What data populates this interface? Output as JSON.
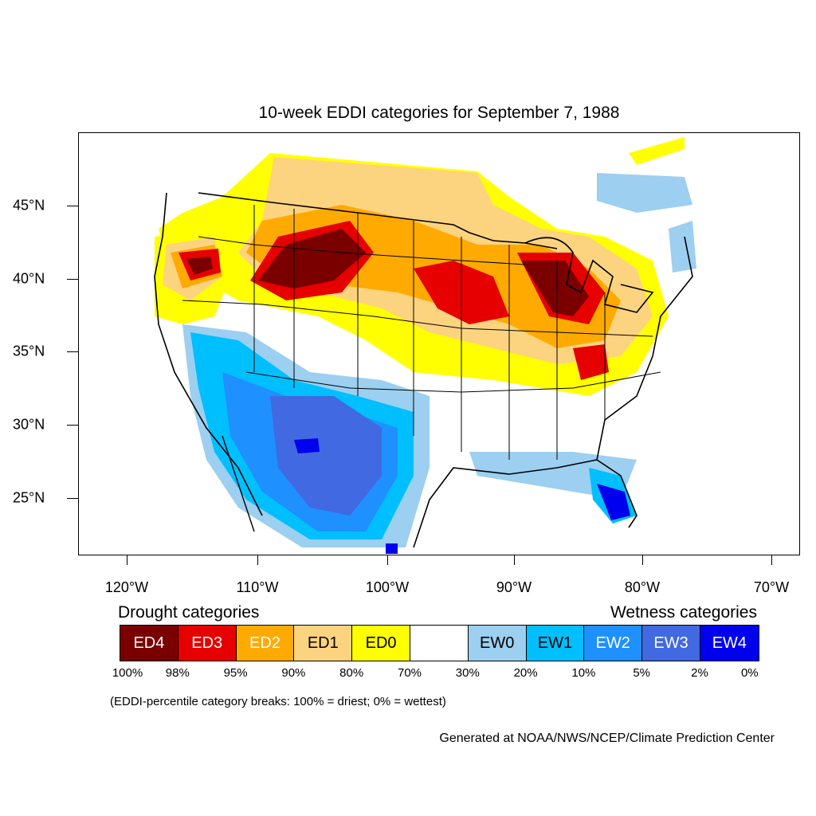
{
  "title": "10-week EDDI categories for September 7, 1988",
  "axes": {
    "lat_labels": [
      "45°N",
      "40°N",
      "35°N",
      "30°N",
      "25°N"
    ],
    "lon_labels": [
      "120°W",
      "110°W",
      "100°W",
      "90°W",
      "80°W",
      "70°W"
    ]
  },
  "legend": {
    "drought_heading": "Drought categories",
    "wetness_heading": "Wetness categories",
    "categories": [
      {
        "label": "ED4",
        "color": "#7a0000",
        "text_color": "#ffffff"
      },
      {
        "label": "ED3",
        "color": "#e60000",
        "text_color": "#ffffff"
      },
      {
        "label": "ED2",
        "color": "#ffaa00",
        "text_color": "#ffffff"
      },
      {
        "label": "ED1",
        "color": "#fcd37f",
        "text_color": "#000000"
      },
      {
        "label": "ED0",
        "color": "#ffff00",
        "text_color": "#000000"
      },
      {
        "label": "",
        "color": "#ffffff",
        "text_color": "#000000"
      },
      {
        "label": "EW0",
        "color": "#9ccff0",
        "text_color": "#000000"
      },
      {
        "label": "EW1",
        "color": "#00bfff",
        "text_color": "#000000"
      },
      {
        "label": "EW2",
        "color": "#1e90ff",
        "text_color": "#ffffff"
      },
      {
        "label": "EW3",
        "color": "#4169e1",
        "text_color": "#ffffff"
      },
      {
        "label": "EW4",
        "color": "#0000ee",
        "text_color": "#ffffff"
      }
    ],
    "breaks": [
      "100%",
      "98%",
      "95%",
      "90%",
      "80%",
      "70%",
      "30%",
      "20%",
      "10%",
      "5%",
      "2%",
      "0%"
    ],
    "note": "(EDDI-percentile category breaks: 100% = driest; 0% = wettest)"
  },
  "credit": "Generated at NOAA/NWS/NCEP/Climate Prediction Center"
}
